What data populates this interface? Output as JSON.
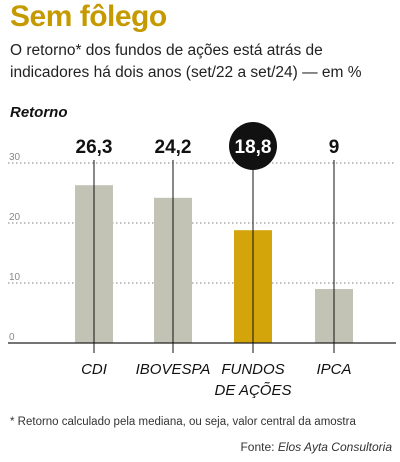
{
  "header": {
    "title": "Sem fôlego",
    "subtitle": "O retorno* dos fundos de ações está atrás de indicadores há dois anos (set/22 a set/24) — em %"
  },
  "chart_data": {
    "type": "bar",
    "ylabel": "Retorno",
    "categories": [
      "CDI",
      "IBOVESPA",
      "FUNDOS DE AÇÕES",
      "IPCA"
    ],
    "category_lines": [
      [
        "CDI"
      ],
      [
        "IBOVESPA"
      ],
      [
        "FUNDOS",
        "DE AÇÕES"
      ],
      [
        "IPCA"
      ]
    ],
    "values": [
      26.3,
      24.2,
      18.8,
      9
    ],
    "value_labels": [
      "26,3",
      "24,2",
      "18,8",
      "9"
    ],
    "highlight_index": 2,
    "yticks": [
      0,
      10,
      20,
      30
    ],
    "ylim": [
      0,
      30
    ],
    "grid": true,
    "colors": {
      "bar": "#c2c3b5",
      "highlight": "#d4a50a",
      "badge": "#111111",
      "badge_text": "#ffffff"
    }
  },
  "footer": {
    "footnote": "* Retorno calculado pela mediana, ou seja, valor central da amostra",
    "source_prefix": "Fonte: ",
    "source_name": "Elos Ayta Consultoria"
  }
}
